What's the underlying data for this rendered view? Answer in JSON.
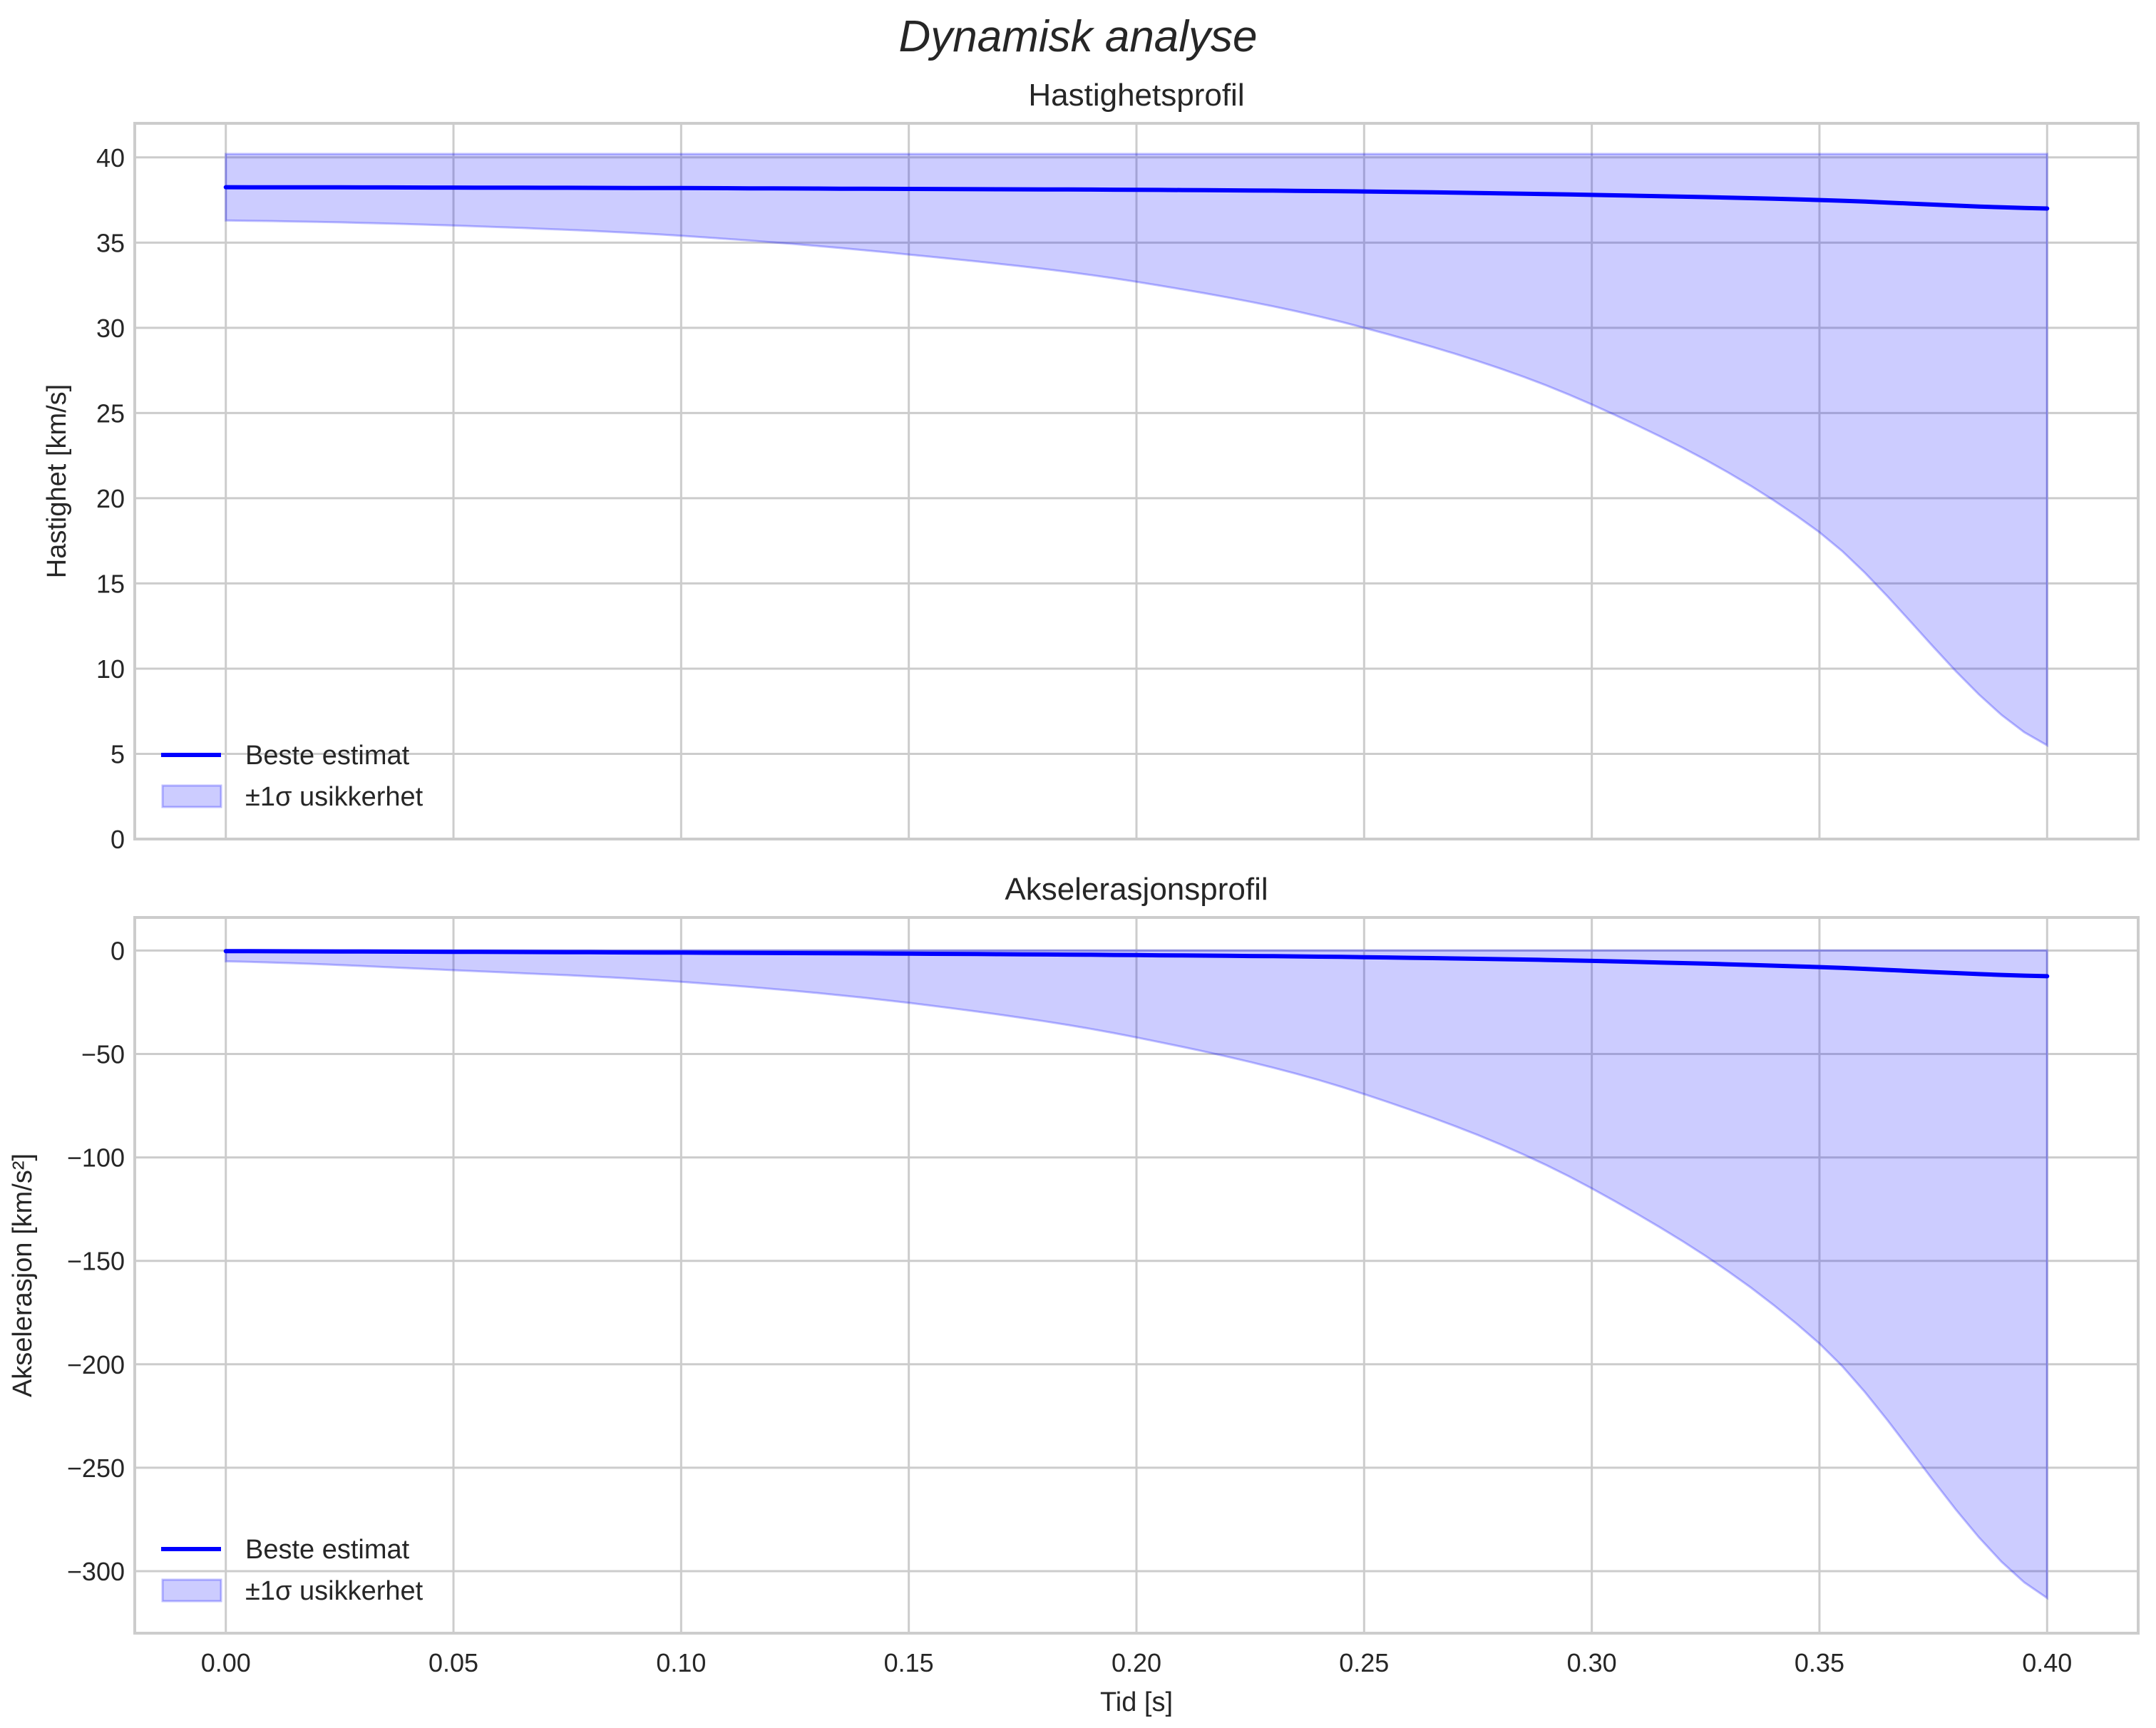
{
  "figure": {
    "suptitle": "Dynamisk analyse",
    "xlabel": "Tid [s]",
    "colors": {
      "line": "#0000ff",
      "band_fill": "#0000ff",
      "band_alpha": 0.2,
      "grid": "#cccccc",
      "text": "#262626"
    }
  },
  "chart_data": [
    {
      "type": "line",
      "title": "Hastighetsprofil",
      "xlabel": "",
      "ylabel": "Hastighet [km/s]",
      "xlim": [
        -0.02,
        0.42
      ],
      "ylim": [
        0,
        42
      ],
      "xticks": [
        "0.00",
        "0.05",
        "0.10",
        "0.15",
        "0.20",
        "0.25",
        "0.30",
        "0.35",
        "0.40"
      ],
      "yticks": [
        "0",
        "5",
        "10",
        "15",
        "20",
        "25",
        "30",
        "35",
        "40"
      ],
      "grid": true,
      "legend_position": "lower left",
      "legend": [
        "Beste estimat",
        "±1σ usikkerhet"
      ],
      "x": [
        0.0,
        0.05,
        0.1,
        0.15,
        0.2,
        0.25,
        0.3,
        0.35,
        0.4
      ],
      "series": [
        {
          "name": "Beste estimat",
          "values": [
            38.25,
            38.23,
            38.2,
            38.15,
            38.1,
            38.0,
            37.8,
            37.5,
            37.0
          ]
        },
        {
          "name": "±1σ usikkerhet (øvre)",
          "values": [
            40.2,
            40.2,
            40.2,
            40.2,
            40.2,
            40.2,
            40.2,
            40.2,
            40.2
          ]
        },
        {
          "name": "±1σ usikkerhet (nedre)",
          "values": [
            36.3,
            36.0,
            35.4,
            34.3,
            32.7,
            30.0,
            25.5,
            18.0,
            5.5
          ]
        }
      ]
    },
    {
      "type": "line",
      "title": "Akselerasjonsprofil",
      "xlabel": "Tid [s]",
      "ylabel": "Akselerasjon [km/s²]",
      "xlim": [
        -0.02,
        0.42
      ],
      "ylim": [
        -330,
        16
      ],
      "xticks": [
        "0.00",
        "0.05",
        "0.10",
        "0.15",
        "0.20",
        "0.25",
        "0.30",
        "0.35",
        "0.40"
      ],
      "yticks": [
        "0",
        "−50",
        "−100",
        "−150",
        "−200",
        "−250",
        "−300"
      ],
      "grid": true,
      "legend_position": "lower left",
      "legend": [
        "Beste estimat",
        "±1σ usikkerhet"
      ],
      "x": [
        0.0,
        0.05,
        0.1,
        0.15,
        0.2,
        0.25,
        0.3,
        0.35,
        0.4
      ],
      "series": [
        {
          "name": "Beste estimat",
          "values": [
            -0.3,
            -0.6,
            -1.0,
            -1.5,
            -2.2,
            -3.2,
            -5.0,
            -8.0,
            -12.4
          ]
        },
        {
          "name": "±1σ usikkerhet (øvre)",
          "values": [
            0.1,
            0.1,
            0.1,
            0.1,
            0.1,
            0.1,
            0.1,
            0.1,
            0.1
          ]
        },
        {
          "name": "±1σ usikkerhet (nedre)",
          "values": [
            -5.2,
            -9.5,
            -15.1,
            -25.3,
            -42.0,
            -69.4,
            -115.0,
            -190.0,
            -313.0
          ]
        }
      ]
    }
  ]
}
